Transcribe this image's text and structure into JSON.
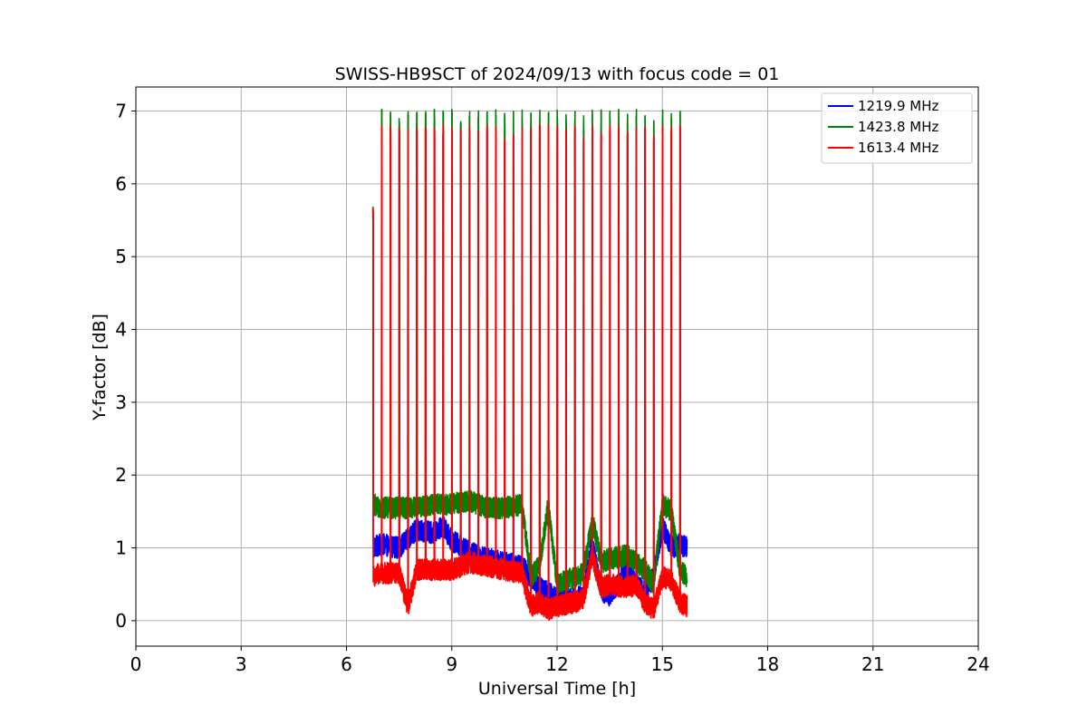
{
  "chart_data": {
    "type": "line",
    "title": "SWISS-HB9SCT of 2024/09/13 with focus code = 01",
    "xlabel": "Universal Time [h]",
    "ylabel": "Y-factor [dB]",
    "xlim": [
      0,
      24
    ],
    "ylim": [
      -0.35,
      7.33
    ],
    "xticks": [
      0,
      3,
      6,
      9,
      12,
      15,
      18,
      21,
      24
    ],
    "yticks": [
      0,
      1,
      2,
      3,
      4,
      5,
      6,
      7
    ],
    "grid": true,
    "legend_position": "top-right",
    "x_start": 6.75,
    "x_end": 15.7,
    "calibration_pulse_times": [
      6.75,
      7.0,
      7.25,
      7.5,
      7.75,
      8.0,
      8.25,
      8.5,
      8.75,
      9.0,
      9.25,
      9.5,
      9.75,
      10.0,
      10.25,
      10.5,
      10.75,
      11.0,
      11.25,
      11.5,
      11.75,
      12.0,
      12.25,
      12.5,
      12.75,
      13.0,
      13.25,
      13.5,
      13.75,
      14.0,
      14.25,
      14.5,
      14.75,
      15.0,
      15.25,
      15.5
    ],
    "series": [
      {
        "name": "1219.9 MHz",
        "color": "#0000ff",
        "pulse_peak": 6.7,
        "baseline": [
          [
            6.75,
            1.0
          ],
          [
            7.0,
            1.05
          ],
          [
            7.5,
            1.0
          ],
          [
            8.0,
            1.25
          ],
          [
            8.5,
            1.2
          ],
          [
            8.75,
            1.3
          ],
          [
            9.0,
            1.1
          ],
          [
            9.5,
            0.95
          ],
          [
            10.0,
            0.85
          ],
          [
            10.5,
            0.8
          ],
          [
            11.0,
            0.75
          ],
          [
            11.25,
            0.6
          ],
          [
            11.5,
            0.45
          ],
          [
            11.75,
            0.4
          ],
          [
            12.0,
            0.3
          ],
          [
            12.5,
            0.3
          ],
          [
            12.75,
            0.35
          ],
          [
            13.0,
            1.1
          ],
          [
            13.25,
            0.4
          ],
          [
            13.5,
            0.35
          ],
          [
            14.0,
            0.7
          ],
          [
            14.25,
            0.5
          ],
          [
            14.5,
            0.4
          ],
          [
            14.75,
            0.6
          ],
          [
            15.0,
            1.3
          ],
          [
            15.25,
            1.0
          ],
          [
            15.5,
            1.05
          ],
          [
            15.7,
            1.0
          ]
        ]
      },
      {
        "name": "1423.8 MHz",
        "color": "#008000",
        "pulse_peak": 6.9,
        "baseline": [
          [
            6.75,
            1.6
          ],
          [
            7.0,
            1.55
          ],
          [
            7.5,
            1.55
          ],
          [
            8.0,
            1.55
          ],
          [
            8.5,
            1.6
          ],
          [
            9.0,
            1.6
          ],
          [
            9.5,
            1.65
          ],
          [
            10.0,
            1.55
          ],
          [
            10.5,
            1.55
          ],
          [
            11.0,
            1.6
          ],
          [
            11.25,
            0.6
          ],
          [
            11.5,
            0.75
          ],
          [
            11.75,
            1.6
          ],
          [
            12.0,
            0.5
          ],
          [
            12.5,
            0.6
          ],
          [
            12.75,
            0.65
          ],
          [
            13.0,
            1.4
          ],
          [
            13.25,
            0.8
          ],
          [
            13.5,
            0.85
          ],
          [
            14.0,
            0.9
          ],
          [
            14.5,
            0.7
          ],
          [
            14.75,
            0.5
          ],
          [
            15.0,
            1.6
          ],
          [
            15.25,
            1.5
          ],
          [
            15.5,
            0.7
          ],
          [
            15.7,
            0.6
          ]
        ]
      },
      {
        "name": "1613.4 MHz",
        "color": "#ff0000",
        "pulse_peak": 6.68,
        "baseline": [
          [
            6.75,
            0.6
          ],
          [
            7.0,
            0.65
          ],
          [
            7.5,
            0.65
          ],
          [
            7.75,
            0.2
          ],
          [
            8.0,
            0.7
          ],
          [
            8.5,
            0.7
          ],
          [
            9.0,
            0.7
          ],
          [
            9.5,
            0.8
          ],
          [
            10.0,
            0.75
          ],
          [
            10.5,
            0.7
          ],
          [
            11.0,
            0.65
          ],
          [
            11.25,
            0.2
          ],
          [
            11.5,
            0.25
          ],
          [
            11.75,
            0.15
          ],
          [
            12.0,
            0.2
          ],
          [
            12.5,
            0.25
          ],
          [
            12.75,
            0.3
          ],
          [
            13.0,
            0.9
          ],
          [
            13.25,
            0.45
          ],
          [
            13.5,
            0.5
          ],
          [
            14.0,
            0.45
          ],
          [
            14.25,
            0.5
          ],
          [
            14.5,
            0.25
          ],
          [
            14.75,
            0.15
          ],
          [
            15.0,
            0.6
          ],
          [
            15.25,
            0.55
          ],
          [
            15.5,
            0.25
          ],
          [
            15.7,
            0.2
          ]
        ]
      }
    ]
  }
}
